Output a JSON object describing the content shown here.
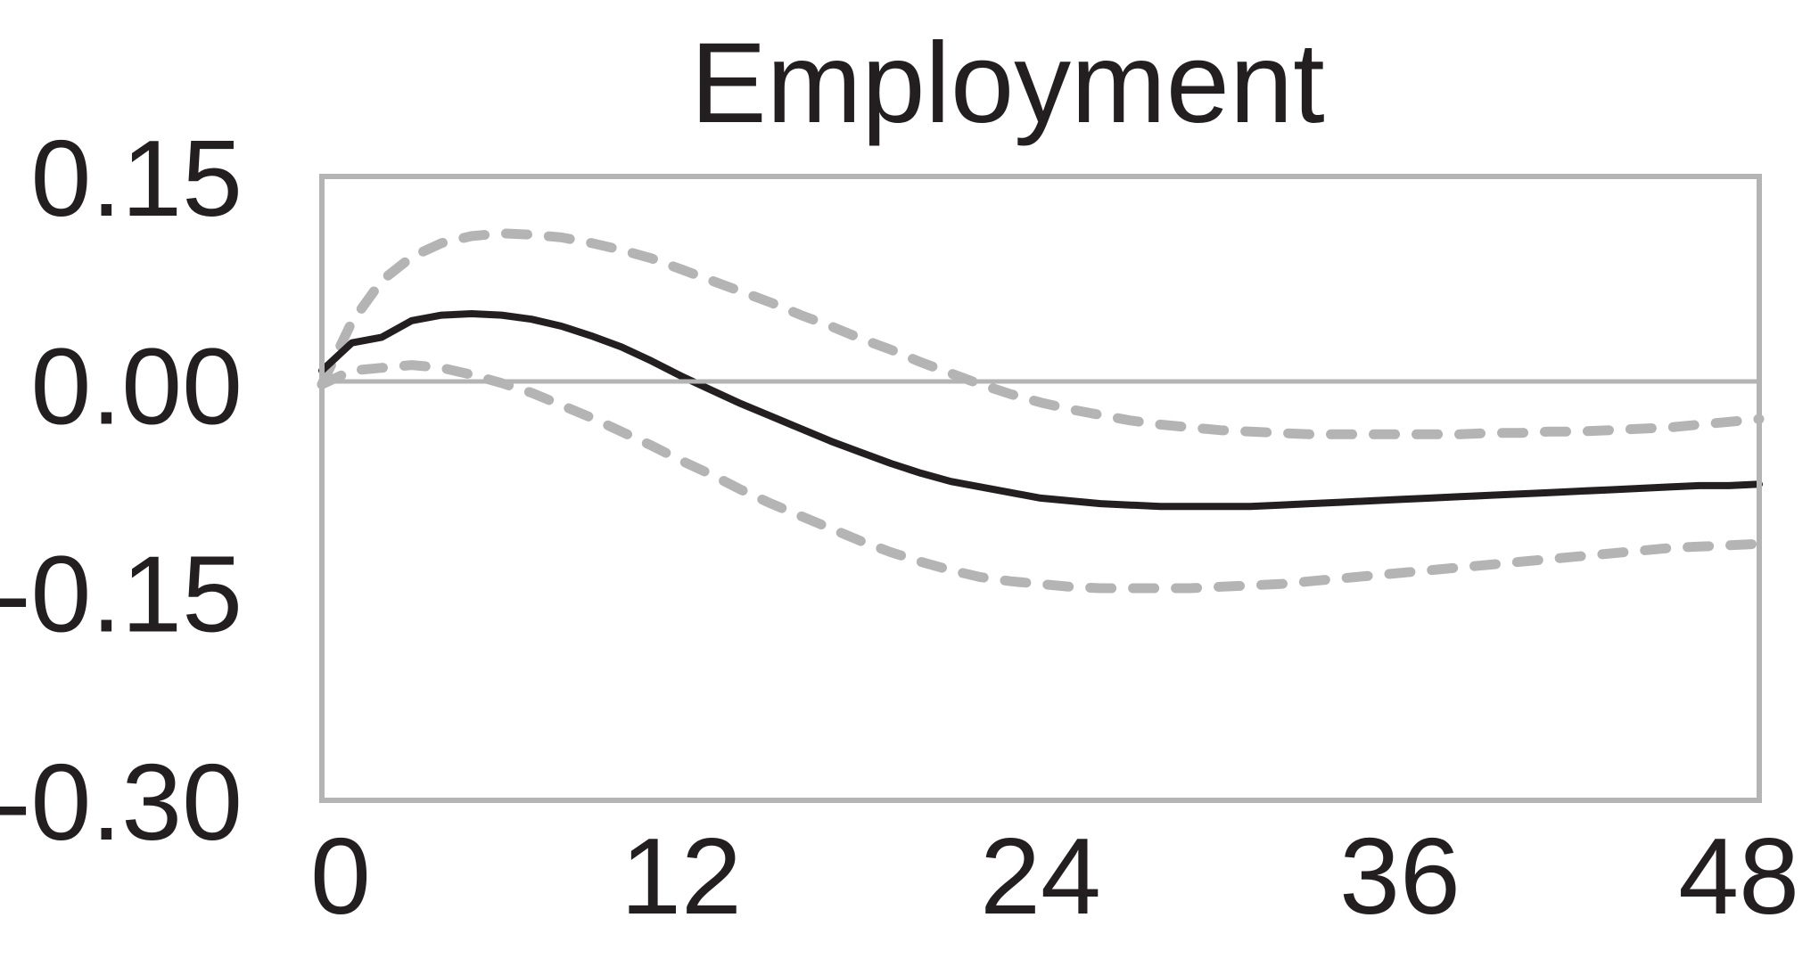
{
  "chart_data": {
    "type": "line",
    "title": "Employment",
    "xlabel": "",
    "ylabel": "",
    "xlim": [
      0,
      48
    ],
    "ylim": [
      -0.3,
      0.15
    ],
    "x_ticks": [
      "0",
      "12",
      "24",
      "36",
      "48"
    ],
    "y_ticks": [
      "0.15",
      "0.00",
      "-0.15",
      "-0.30"
    ],
    "grid": false,
    "zero_line": true,
    "colors": {
      "median": "#231f20",
      "bands": "#b4b4b4",
      "frame": "#b4b4b4",
      "zero_line": "#b4b4b4"
    },
    "series": [
      {
        "role": "upper-band",
        "style": "dashed",
        "x": [
          0,
          1,
          2,
          3,
          4,
          5,
          6,
          7,
          8,
          9,
          10,
          11,
          12,
          13,
          14,
          15,
          16,
          17,
          18,
          19,
          20,
          21,
          22,
          23,
          24,
          25,
          26,
          27,
          28,
          29,
          30,
          31,
          32,
          33,
          34,
          35,
          36,
          37,
          38,
          39,
          40,
          41,
          42,
          43,
          44,
          45,
          46,
          47,
          48
        ],
        "values": [
          0.0,
          0.045,
          0.075,
          0.092,
          0.102,
          0.107,
          0.109,
          0.108,
          0.106,
          0.102,
          0.097,
          0.091,
          0.083,
          0.075,
          0.067,
          0.059,
          0.05,
          0.042,
          0.033,
          0.025,
          0.016,
          0.008,
          0.0,
          -0.007,
          -0.013,
          -0.018,
          -0.022,
          -0.026,
          -0.029,
          -0.031,
          -0.033,
          -0.034,
          -0.035,
          -0.036,
          -0.036,
          -0.036,
          -0.036,
          -0.036,
          -0.036,
          -0.035,
          -0.035,
          -0.034,
          -0.034,
          -0.033,
          -0.032,
          -0.031,
          -0.029,
          -0.027,
          -0.025
        ]
      },
      {
        "role": "median",
        "style": "solid",
        "x": [
          0,
          1,
          2,
          3,
          4,
          5,
          6,
          7,
          8,
          9,
          10,
          11,
          12,
          13,
          14,
          15,
          16,
          17,
          18,
          19,
          20,
          21,
          22,
          23,
          24,
          25,
          26,
          27,
          28,
          29,
          30,
          31,
          32,
          33,
          34,
          35,
          36,
          37,
          38,
          39,
          40,
          41,
          42,
          43,
          44,
          45,
          46,
          47,
          48
        ],
        "values": [
          0.01,
          0.03,
          0.034,
          0.046,
          0.05,
          0.051,
          0.05,
          0.047,
          0.042,
          0.035,
          0.027,
          0.017,
          0.006,
          -0.004,
          -0.014,
          -0.023,
          -0.032,
          -0.041,
          -0.049,
          -0.057,
          -0.064,
          -0.07,
          -0.074,
          -0.078,
          -0.082,
          -0.084,
          -0.086,
          -0.087,
          -0.088,
          -0.088,
          -0.088,
          -0.088,
          -0.087,
          -0.086,
          -0.085,
          -0.084,
          -0.083,
          -0.082,
          -0.081,
          -0.08,
          -0.079,
          -0.078,
          -0.077,
          -0.076,
          -0.075,
          -0.074,
          -0.073,
          -0.073,
          -0.072
        ]
      },
      {
        "role": "lower-band",
        "style": "dashed",
        "x": [
          0,
          1,
          2,
          3,
          4,
          5,
          6,
          7,
          8,
          9,
          10,
          11,
          12,
          13,
          14,
          15,
          16,
          17,
          18,
          19,
          20,
          21,
          22,
          23,
          24,
          25,
          26,
          27,
          28,
          29,
          30,
          31,
          32,
          33,
          34,
          35,
          36,
          37,
          38,
          39,
          40,
          41,
          42,
          43,
          44,
          45,
          46,
          47,
          48
        ],
        "values": [
          0.0,
          0.01,
          0.012,
          0.014,
          0.012,
          0.007,
          0.001,
          -0.006,
          -0.015,
          -0.024,
          -0.034,
          -0.044,
          -0.055,
          -0.065,
          -0.076,
          -0.086,
          -0.095,
          -0.104,
          -0.113,
          -0.121,
          -0.128,
          -0.134,
          -0.139,
          -0.142,
          -0.144,
          -0.146,
          -0.147,
          -0.147,
          -0.147,
          -0.147,
          -0.146,
          -0.145,
          -0.144,
          -0.142,
          -0.14,
          -0.138,
          -0.136,
          -0.134,
          -0.132,
          -0.13,
          -0.128,
          -0.126,
          -0.124,
          -0.122,
          -0.12,
          -0.118,
          -0.117,
          -0.116,
          -0.115
        ]
      }
    ]
  }
}
